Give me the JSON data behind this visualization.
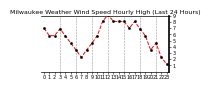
{
  "title": "Milwaukee Weather Wind Speed Hourly High (Last 24 Hours)",
  "x": [
    0,
    1,
    2,
    3,
    4,
    5,
    6,
    7,
    8,
    9,
    10,
    11,
    12,
    13,
    14,
    15,
    16,
    17,
    18,
    19,
    20,
    21,
    22,
    23
  ],
  "y": [
    7.0,
    5.8,
    5.8,
    6.9,
    5.8,
    4.6,
    3.5,
    2.3,
    3.5,
    4.6,
    5.8,
    8.1,
    9.2,
    8.1,
    8.1,
    8.1,
    7.0,
    8.1,
    6.9,
    5.8,
    3.5,
    4.6,
    2.3,
    1.2
  ],
  "line_color": "#ff0000",
  "line_style": "--",
  "marker": "o",
  "marker_color": "#000000",
  "marker_size": 1.5,
  "linewidth": 0.7,
  "ylim": [
    0,
    9
  ],
  "yticks": [
    1,
    2,
    3,
    4,
    5,
    6,
    7,
    8,
    9
  ],
  "ytick_labels": [
    "1",
    "2",
    "3",
    "4",
    "5",
    "6",
    "7",
    "8",
    "9"
  ],
  "background_color": "#ffffff",
  "grid_color": "#999999",
  "title_fontsize": 4.5,
  "tick_fontsize": 3.5,
  "grid_x_positions": [
    3,
    6,
    9,
    12,
    15,
    18,
    21
  ]
}
